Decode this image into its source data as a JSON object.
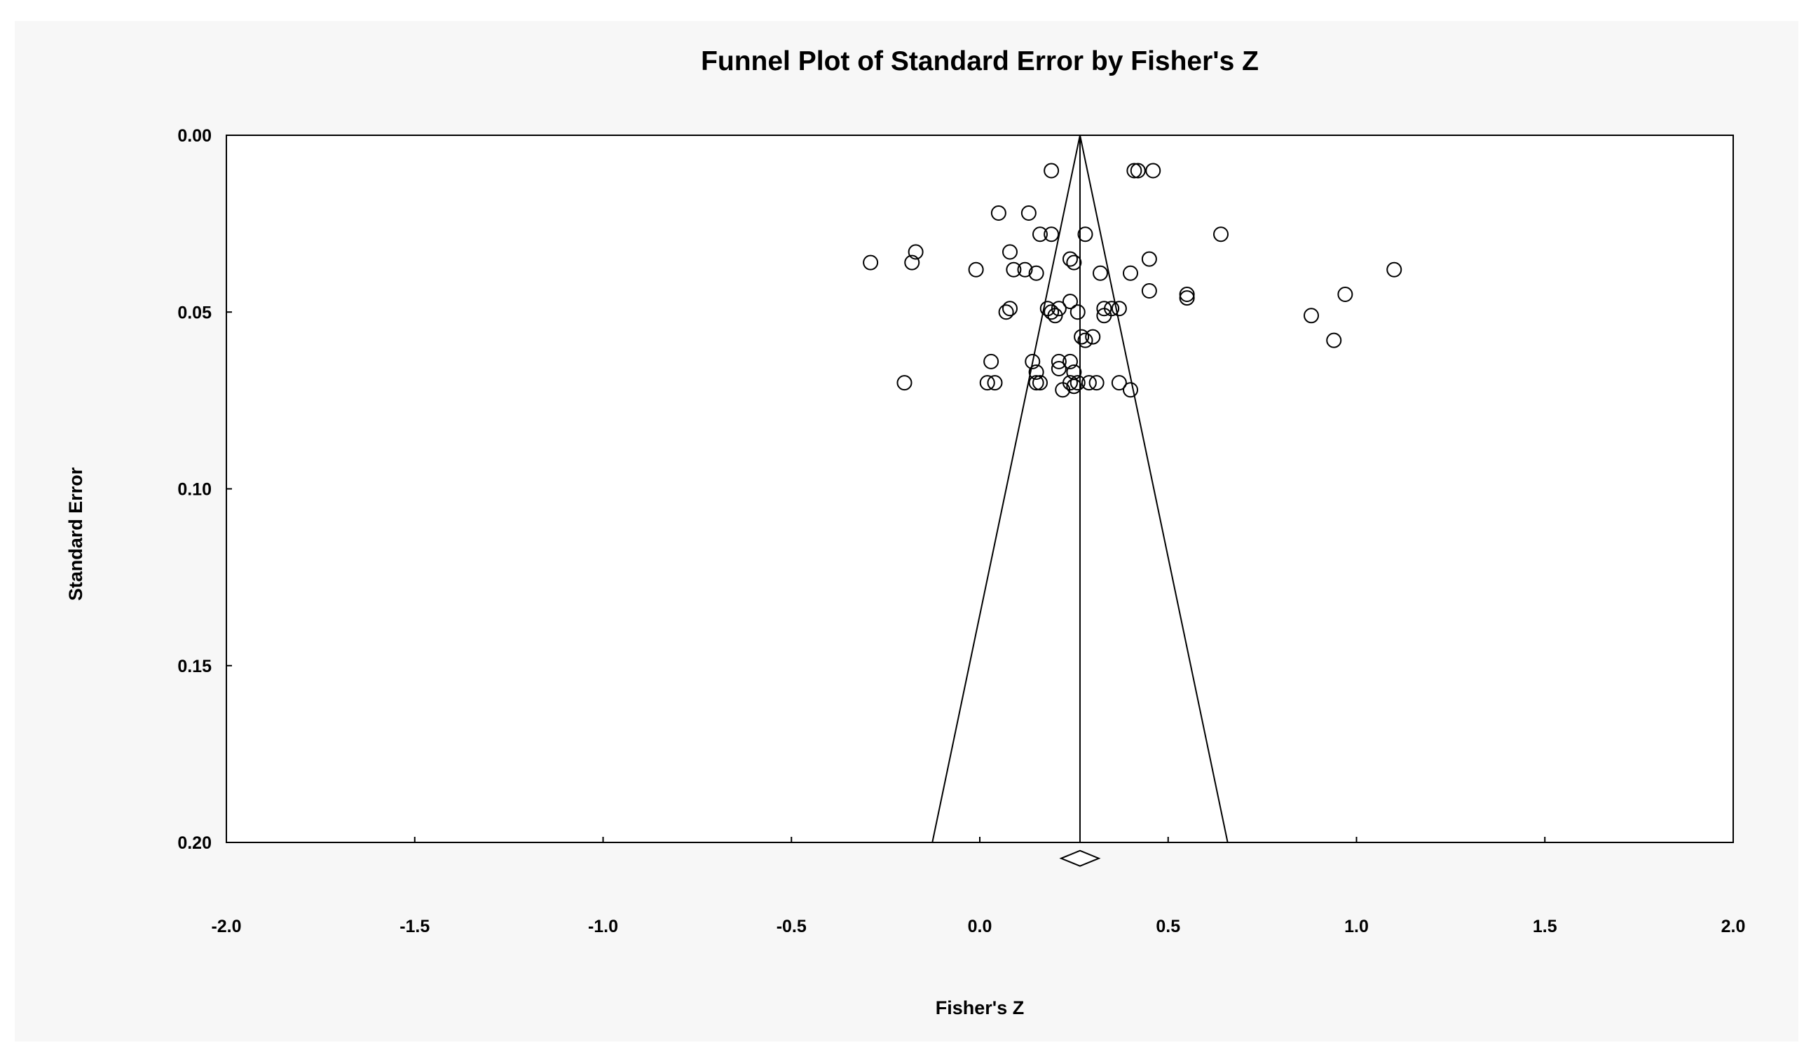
{
  "chart_data": {
    "type": "scatter",
    "title": "Funnel Plot of Standard Error by Fisher's Z",
    "xlabel": "Fisher's Z",
    "ylabel": "Standard Error",
    "xlim": [
      -2.0,
      2.0
    ],
    "ylim": [
      0.0,
      0.2
    ],
    "y_inverted": true,
    "x_ticks": [
      "-2.0",
      "-1.5",
      "-1.0",
      "-0.5",
      "0.0",
      "0.5",
      "1.0",
      "1.5",
      "2.0"
    ],
    "y_ticks": [
      "0.00",
      "0.05",
      "0.10",
      "0.15",
      "0.20"
    ],
    "grid": false,
    "legend": "none",
    "point_style": "open-circle",
    "combined_effect": 0.266,
    "funnel_lines": [
      {
        "x": [
          0.266,
          -0.126
        ],
        "y": [
          0.0,
          0.2
        ]
      },
      {
        "x": [
          0.266,
          0.658
        ],
        "y": [
          0.0,
          0.2
        ]
      }
    ],
    "summary_diamond": {
      "center": 0.266,
      "lower": 0.216,
      "upper": 0.316,
      "y": 0.2045
    },
    "points": [
      {
        "x": 0.19,
        "y": 0.01
      },
      {
        "x": 0.41,
        "y": 0.01
      },
      {
        "x": 0.42,
        "y": 0.01
      },
      {
        "x": 0.46,
        "y": 0.01
      },
      {
        "x": 0.05,
        "y": 0.022
      },
      {
        "x": 0.13,
        "y": 0.022
      },
      {
        "x": 0.16,
        "y": 0.028
      },
      {
        "x": 0.19,
        "y": 0.028
      },
      {
        "x": 0.28,
        "y": 0.028
      },
      {
        "x": 0.64,
        "y": 0.028
      },
      {
        "x": -0.29,
        "y": 0.036
      },
      {
        "x": -0.18,
        "y": 0.036
      },
      {
        "x": -0.17,
        "y": 0.033
      },
      {
        "x": 0.08,
        "y": 0.033
      },
      {
        "x": 0.24,
        "y": 0.035
      },
      {
        "x": 0.25,
        "y": 0.036
      },
      {
        "x": 0.45,
        "y": 0.035
      },
      {
        "x": -0.01,
        "y": 0.038
      },
      {
        "x": 0.09,
        "y": 0.038
      },
      {
        "x": 0.12,
        "y": 0.038
      },
      {
        "x": 0.15,
        "y": 0.039
      },
      {
        "x": 0.32,
        "y": 0.039
      },
      {
        "x": 0.4,
        "y": 0.039
      },
      {
        "x": 1.1,
        "y": 0.038
      },
      {
        "x": 0.45,
        "y": 0.044
      },
      {
        "x": 0.55,
        "y": 0.045
      },
      {
        "x": 0.55,
        "y": 0.046
      },
      {
        "x": 0.97,
        "y": 0.045
      },
      {
        "x": 0.24,
        "y": 0.047
      },
      {
        "x": 0.07,
        "y": 0.05
      },
      {
        "x": 0.08,
        "y": 0.049
      },
      {
        "x": 0.18,
        "y": 0.049
      },
      {
        "x": 0.19,
        "y": 0.05
      },
      {
        "x": 0.2,
        "y": 0.051
      },
      {
        "x": 0.21,
        "y": 0.049
      },
      {
        "x": 0.26,
        "y": 0.05
      },
      {
        "x": 0.33,
        "y": 0.049
      },
      {
        "x": 0.33,
        "y": 0.051
      },
      {
        "x": 0.35,
        "y": 0.049
      },
      {
        "x": 0.37,
        "y": 0.049
      },
      {
        "x": 0.88,
        "y": 0.051
      },
      {
        "x": 0.27,
        "y": 0.057
      },
      {
        "x": 0.28,
        "y": 0.058
      },
      {
        "x": 0.3,
        "y": 0.057
      },
      {
        "x": 0.94,
        "y": 0.058
      },
      {
        "x": 0.03,
        "y": 0.064
      },
      {
        "x": 0.14,
        "y": 0.064
      },
      {
        "x": 0.21,
        "y": 0.064
      },
      {
        "x": 0.24,
        "y": 0.064
      },
      {
        "x": 0.15,
        "y": 0.067
      },
      {
        "x": 0.21,
        "y": 0.066
      },
      {
        "x": 0.25,
        "y": 0.067
      },
      {
        "x": -0.2,
        "y": 0.07
      },
      {
        "x": 0.02,
        "y": 0.07
      },
      {
        "x": 0.04,
        "y": 0.07
      },
      {
        "x": 0.15,
        "y": 0.07
      },
      {
        "x": 0.16,
        "y": 0.07
      },
      {
        "x": 0.22,
        "y": 0.072
      },
      {
        "x": 0.24,
        "y": 0.07
      },
      {
        "x": 0.25,
        "y": 0.071
      },
      {
        "x": 0.26,
        "y": 0.07
      },
      {
        "x": 0.29,
        "y": 0.07
      },
      {
        "x": 0.31,
        "y": 0.07
      },
      {
        "x": 0.37,
        "y": 0.07
      },
      {
        "x": 0.4,
        "y": 0.072
      }
    ]
  }
}
